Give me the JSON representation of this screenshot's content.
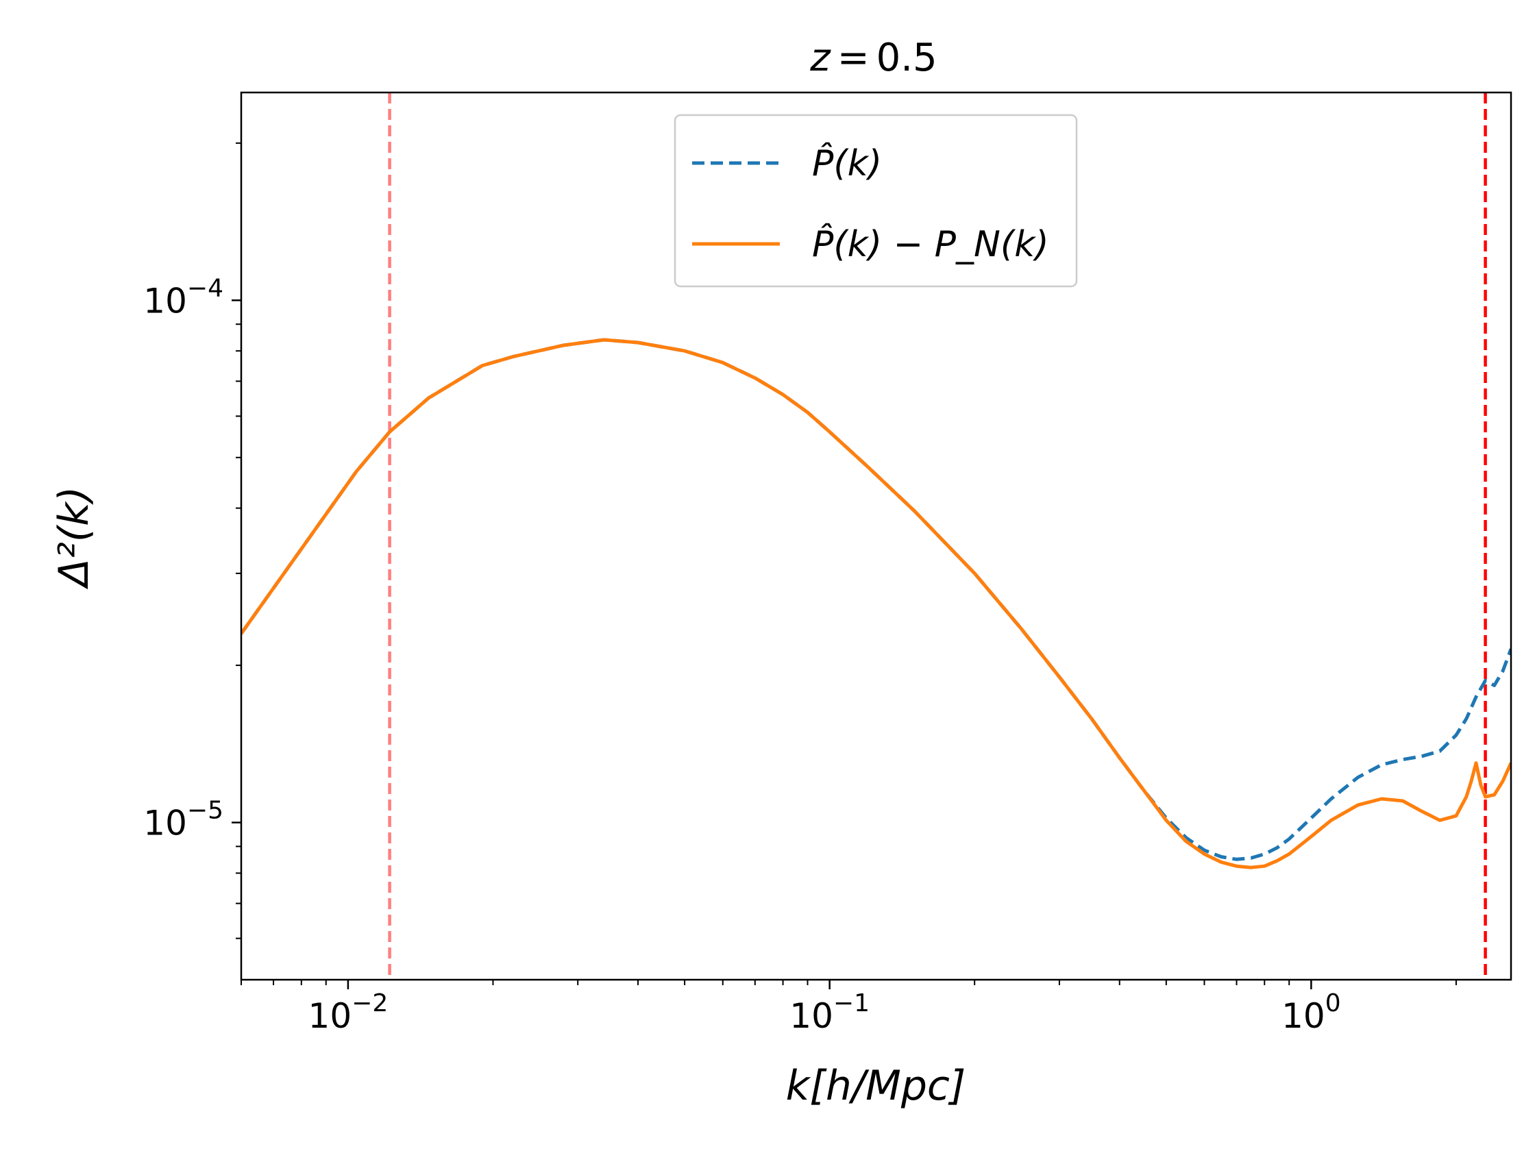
{
  "chart_data": {
    "type": "line",
    "title": "z = 0.5",
    "title_parts": {
      "var": "z",
      "op": "=",
      "value": "0.5"
    },
    "xlabel": "k[h/Mpc]",
    "ylabel": "Δ²(k)",
    "xscale": "log",
    "yscale": "log",
    "xlim": [
      0.006,
      2.6
    ],
    "ylim": [
      5e-06,
      0.00025
    ],
    "x_major_ticks": [
      {
        "value": 0.01,
        "base": "10",
        "exp": "−2"
      },
      {
        "value": 0.1,
        "base": "10",
        "exp": "−1"
      },
      {
        "value": 1,
        "base": "10",
        "exp": "0"
      }
    ],
    "y_major_ticks": [
      {
        "value": 1e-05,
        "base": "10",
        "exp": "−5"
      },
      {
        "value": 0.0001,
        "base": "10",
        "exp": "−4"
      }
    ],
    "vlines": [
      {
        "x": 0.0122,
        "color": "#ff7f7f",
        "style": "dashed"
      },
      {
        "x": 2.3,
        "color": "#ff0000",
        "style": "dashed"
      }
    ],
    "legend": {
      "position": "upper-center",
      "entries": [
        {
          "label": "P̂(k)",
          "color": "#1f77b4",
          "style": "dashed"
        },
        {
          "label": "P̂(k) − P_N(k)",
          "color": "#ff7f0e",
          "style": "solid"
        }
      ]
    },
    "series": [
      {
        "name": "P̂(k)",
        "color": "#1f77b4",
        "style": "dashed",
        "x": [
          0.006,
          0.0104,
          0.0122,
          0.0147,
          0.019,
          0.022,
          0.028,
          0.034,
          0.04,
          0.05,
          0.06,
          0.07,
          0.08,
          0.09,
          0.1,
          0.12,
          0.15,
          0.2,
          0.25,
          0.3,
          0.35,
          0.4,
          0.45,
          0.5,
          0.55,
          0.6,
          0.65,
          0.7,
          0.75,
          0.8,
          0.85,
          0.9,
          1.0,
          1.1,
          1.25,
          1.4,
          1.55,
          1.7,
          1.85,
          2.0,
          2.1,
          2.2,
          2.3,
          2.4,
          2.5,
          2.6
        ],
        "y": [
          2.3e-05,
          4.7e-05,
          5.6e-05,
          6.5e-05,
          7.5e-05,
          7.8e-05,
          8.2e-05,
          8.4e-05,
          8.3e-05,
          8e-05,
          7.6e-05,
          7.1e-05,
          6.6e-05,
          6.1e-05,
          5.6e-05,
          4.8e-05,
          3.95e-05,
          3e-05,
          2.35e-05,
          1.9e-05,
          1.58e-05,
          1.33e-05,
          1.15e-05,
          1.02e-05,
          9.35e-06,
          8.85e-06,
          8.6e-06,
          8.5e-06,
          8.55e-06,
          8.7e-06,
          8.95e-06,
          9.3e-06,
          1.02e-05,
          1.11e-05,
          1.22e-05,
          1.29e-05,
          1.32e-05,
          1.34e-05,
          1.37e-05,
          1.47e-05,
          1.58e-05,
          1.74e-05,
          1.87e-05,
          1.83e-05,
          1.95e-05,
          2.15e-05
        ]
      },
      {
        "name": "P̂(k) − P_N(k)",
        "color": "#ff7f0e",
        "style": "solid",
        "x": [
          0.006,
          0.0104,
          0.0122,
          0.0147,
          0.019,
          0.022,
          0.028,
          0.034,
          0.04,
          0.05,
          0.06,
          0.07,
          0.08,
          0.09,
          0.1,
          0.12,
          0.15,
          0.2,
          0.25,
          0.3,
          0.35,
          0.4,
          0.45,
          0.5,
          0.55,
          0.6,
          0.65,
          0.7,
          0.75,
          0.8,
          0.85,
          0.9,
          1.0,
          1.1,
          1.25,
          1.4,
          1.55,
          1.7,
          1.85,
          2.0,
          2.1,
          2.15,
          2.2,
          2.25,
          2.3,
          2.4,
          2.5,
          2.6
        ],
        "y": [
          2.3e-05,
          4.7e-05,
          5.6e-05,
          6.5e-05,
          7.5e-05,
          7.8e-05,
          8.2e-05,
          8.4e-05,
          8.3e-05,
          8e-05,
          7.6e-05,
          7.1e-05,
          6.6e-05,
          6.1e-05,
          5.6e-05,
          4.8e-05,
          3.95e-05,
          3e-05,
          2.35e-05,
          1.9e-05,
          1.58e-05,
          1.33e-05,
          1.15e-05,
          1.01e-05,
          9.2e-06,
          8.7e-06,
          8.4e-06,
          8.25e-06,
          8.2e-06,
          8.25e-06,
          8.45e-06,
          8.7e-06,
          9.4e-06,
          1.01e-05,
          1.08e-05,
          1.11e-05,
          1.1e-05,
          1.05e-05,
          1.01e-05,
          1.03e-05,
          1.12e-05,
          1.2e-05,
          1.3e-05,
          1.18e-05,
          1.12e-05,
          1.13e-05,
          1.2e-05,
          1.3e-05
        ]
      }
    ]
  }
}
